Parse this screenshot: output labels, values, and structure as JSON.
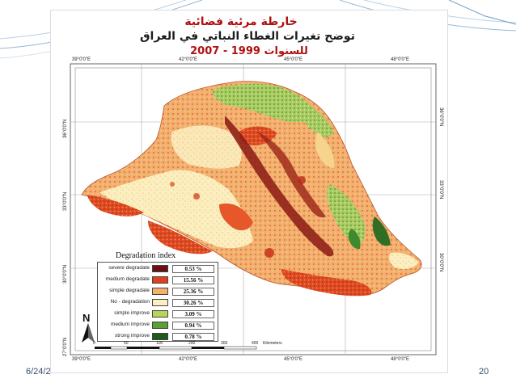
{
  "slide": {
    "date": "6/24/2",
    "page_number": "20"
  },
  "map": {
    "title_line1": "خارطة مرئية فضائية",
    "title_line2": "توضح تغيرات الغطاء النباتي في العراق",
    "title_line3": "للسنوات 1999 - 2007",
    "top_ticks": [
      "39°0'0\"E",
      "42°0'0\"E",
      "45°0'0\"E",
      "48°0'0\"E"
    ],
    "bottom_ticks": [
      "39°0'0\"E",
      "42°0'0\"E",
      "45°0'0\"E",
      "48°0'0\"E"
    ],
    "left_ticks": [
      "36°0'0\"N",
      "33°0'0\"N",
      "30°0'0\"N",
      "27°0'0\"N"
    ],
    "right_ticks": [
      "36°0'0\"N",
      "33°0'0\"N",
      "30°0'0\"N"
    ],
    "north_label": "N",
    "scale_labels": [
      "0",
      "50",
      "100",
      "200",
      "300",
      "400"
    ],
    "scale_unit": "Kilometers"
  },
  "legend": {
    "title": "Degradation index",
    "items": [
      {
        "label": "severe degradate",
        "percent": "0.53  %",
        "color": "#6b0f10"
      },
      {
        "label": "medium degradate",
        "percent": "15.56 %",
        "color": "#e0401c"
      },
      {
        "label": "simple degradate",
        "percent": "25.36 %",
        "color": "#f4b06c"
      },
      {
        "label": "No - degradation",
        "percent": "30.26 %",
        "color": "#fbf0c4"
      },
      {
        "label": "simple improve",
        "percent": "3.09  %",
        "color": "#b8d45a"
      },
      {
        "label": "medium improve",
        "percent": "0.94  %",
        "color": "#5aa032"
      },
      {
        "label": "strong improve",
        "percent": "0.78  %",
        "color": "#1d5a1c"
      }
    ]
  }
}
